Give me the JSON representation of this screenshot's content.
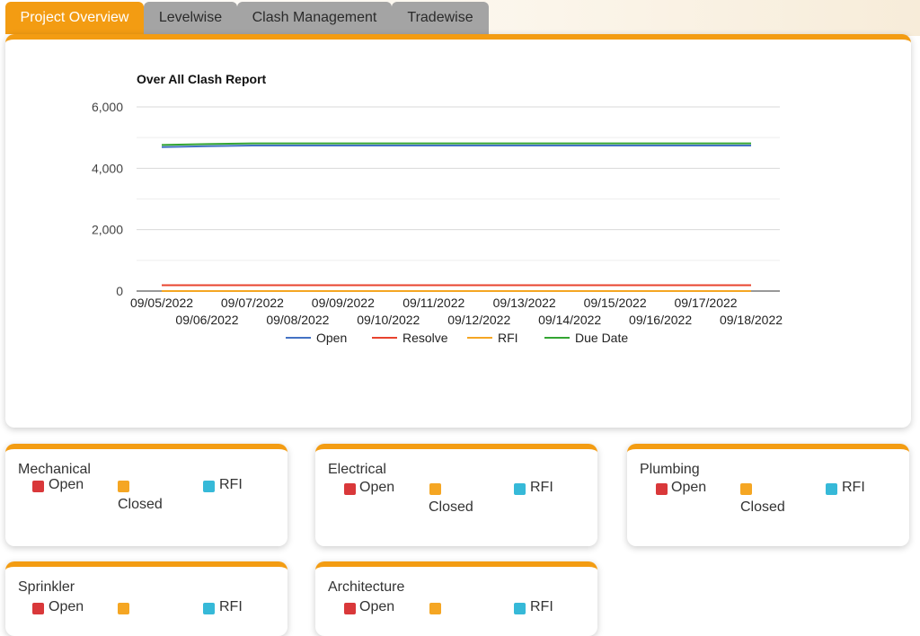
{
  "tabs": [
    {
      "label": "Project Overview",
      "active": true
    },
    {
      "label": "Levelwise",
      "active": false
    },
    {
      "label": "Clash Management",
      "active": false
    },
    {
      "label": "Tradewise",
      "active": false
    }
  ],
  "chart_data": {
    "type": "line",
    "title": "Over All Clash Report",
    "xlabel": "",
    "ylabel": "",
    "ylim": [
      0,
      6000
    ],
    "y_ticks": [
      "0",
      "2,000",
      "4,000",
      "6,000"
    ],
    "x": [
      "09/05/2022",
      "09/06/2022",
      "09/07/2022",
      "09/08/2022",
      "09/09/2022",
      "09/10/2022",
      "09/11/2022",
      "09/12/2022",
      "09/13/2022",
      "09/14/2022",
      "09/15/2022",
      "09/16/2022",
      "09/17/2022",
      "09/18/2022"
    ],
    "grid": true,
    "legend_position": "bottom",
    "series": [
      {
        "name": "Open",
        "color": "#4472c4",
        "values": [
          4690,
          4720,
          4740,
          4740,
          4740,
          4740,
          4740,
          4740,
          4740,
          4740,
          4740,
          4740,
          4740,
          4740
        ]
      },
      {
        "name": "Resolve",
        "color": "#e8432e",
        "values": [
          190,
          190,
          190,
          190,
          190,
          190,
          190,
          190,
          190,
          190,
          190,
          190,
          190,
          190
        ]
      },
      {
        "name": "RFI",
        "color": "#f5a623",
        "values": [
          0,
          0,
          0,
          0,
          0,
          0,
          0,
          0,
          0,
          0,
          0,
          0,
          0,
          0
        ]
      },
      {
        "name": "Due Date",
        "color": "#33a532",
        "values": [
          4760,
          4790,
          4810,
          4810,
          4810,
          4810,
          4810,
          4810,
          4810,
          4810,
          4810,
          4810,
          4810,
          4810
        ]
      }
    ]
  },
  "legend_labels": {
    "open": "Open",
    "closed": "Closed",
    "rfi": "RFI"
  },
  "trade_cards": [
    {
      "title": "Mechanical"
    },
    {
      "title": "Electrical"
    },
    {
      "title": "Plumbing"
    },
    {
      "title": "Sprinkler"
    },
    {
      "title": "Architecture"
    }
  ]
}
